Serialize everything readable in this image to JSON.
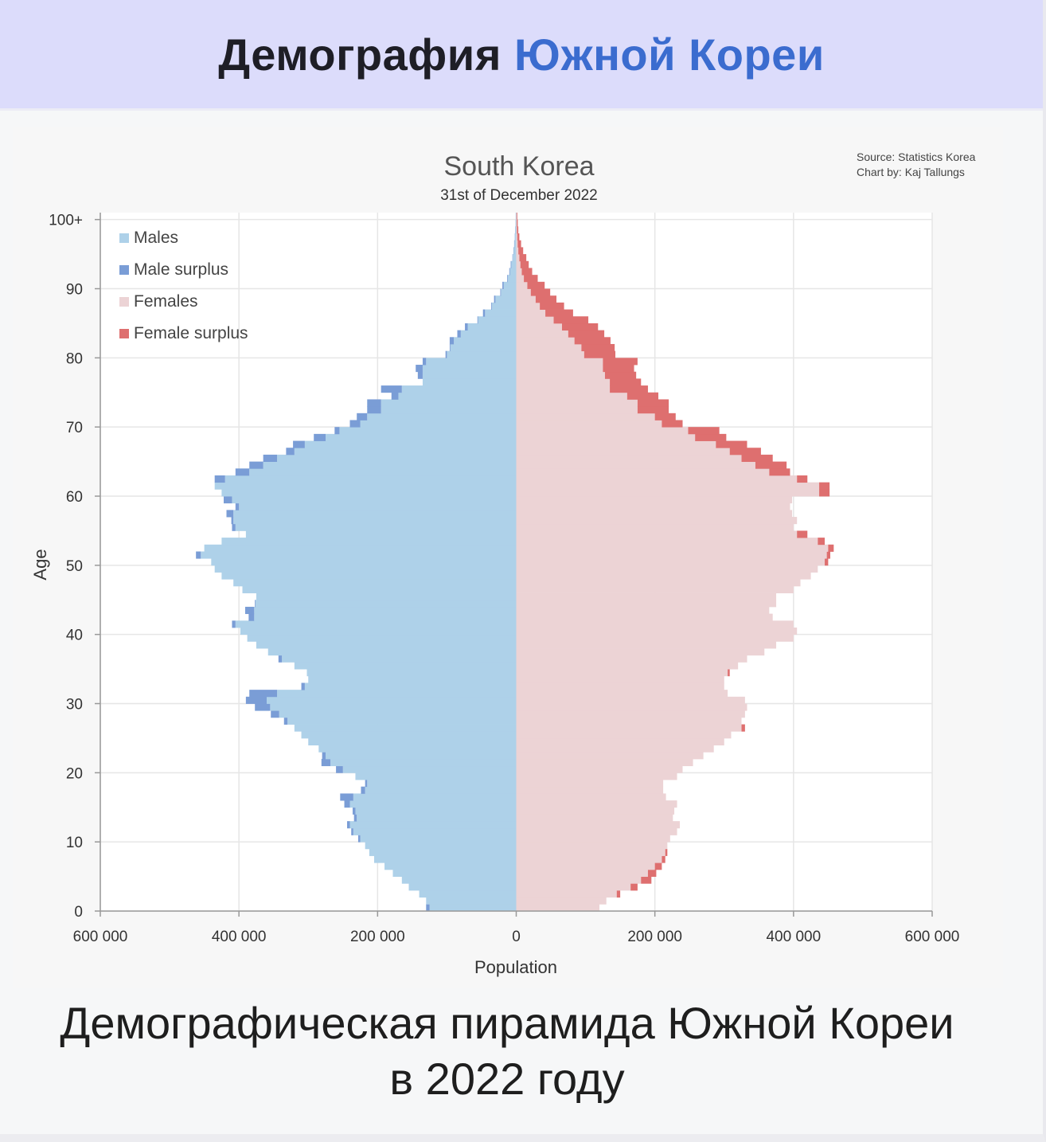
{
  "header": {
    "title_part1": "Демография",
    "title_part2": "Южной Кореи"
  },
  "caption": {
    "line1": "Демографическая пирамида Южной Кореи",
    "line2": "в 2022 году"
  },
  "colors": {
    "header_bg": "#dcdcfb",
    "title_accent": "#3b6ccf",
    "males": "#aed1e9",
    "male_surplus": "#7a9dd6",
    "females": "#ecd3d5",
    "female_surplus": "#de6f6f"
  },
  "chart_data": {
    "type": "bar",
    "orientation": "horizontal-pyramid",
    "title": "South Korea",
    "subtitle": "31st of December 2022",
    "source_line1": "Source: Statistics Korea",
    "source_line2": "Chart by: Kaj Tallungs",
    "xlabel": "Population",
    "ylabel": "Age",
    "xlim": [
      -600000,
      600000
    ],
    "ylim": [
      0,
      101
    ],
    "grid": true,
    "legend_position": "top-left",
    "x_ticks": [
      "600 000",
      "400 000",
      "200 000",
      "0",
      "200 000",
      "400 000",
      "600 000"
    ],
    "y_ticks": [
      "0",
      "10",
      "20",
      "30",
      "40",
      "50",
      "60",
      "70",
      "80",
      "90",
      "100+"
    ],
    "legend": [
      "Males",
      "Male surplus",
      "Females",
      "Female surplus"
    ],
    "ages": [
      0,
      1,
      2,
      3,
      4,
      5,
      6,
      7,
      8,
      9,
      10,
      11,
      12,
      13,
      14,
      15,
      16,
      17,
      18,
      19,
      20,
      21,
      22,
      23,
      24,
      25,
      26,
      27,
      28,
      29,
      30,
      31,
      32,
      33,
      34,
      35,
      36,
      37,
      38,
      39,
      40,
      41,
      42,
      43,
      44,
      45,
      46,
      47,
      48,
      49,
      50,
      51,
      52,
      53,
      54,
      55,
      56,
      57,
      58,
      59,
      60,
      61,
      62,
      63,
      64,
      65,
      66,
      67,
      68,
      69,
      70,
      71,
      72,
      73,
      74,
      75,
      76,
      77,
      78,
      79,
      80,
      81,
      82,
      83,
      84,
      85,
      86,
      87,
      88,
      89,
      90,
      91,
      92,
      93,
      94,
      95,
      96,
      97,
      98,
      99,
      100
    ],
    "series": [
      {
        "name": "Males",
        "values": [
          125000,
          130000,
          140000,
          155000,
          165000,
          178000,
          190000,
          205000,
          212000,
          218000,
          225000,
          235000,
          240000,
          230000,
          232000,
          240000,
          235000,
          218000,
          215000,
          232000,
          250000,
          268000,
          275000,
          285000,
          300000,
          310000,
          320000,
          330000,
          342000,
          355000,
          360000,
          345000,
          305000,
          300000,
          302000,
          320000,
          338000,
          358000,
          375000,
          388000,
          398000,
          405000,
          378000,
          378000,
          376000,
          375000,
          395000,
          408000,
          425000,
          435000,
          440000,
          455000,
          450000,
          425000,
          390000,
          405000,
          408000,
          408000,
          400000,
          410000,
          425000,
          435000,
          420000,
          385000,
          365000,
          345000,
          320000,
          305000,
          275000,
          255000,
          225000,
          215000,
          195000,
          195000,
          170000,
          165000,
          135000,
          135000,
          135000,
          130000,
          100000,
          95000,
          90000,
          80000,
          70000,
          55000,
          45000,
          35000,
          30000,
          22000,
          18000,
          12000,
          9000,
          7000,
          5000,
          3500,
          2500,
          1800,
          1300,
          900,
          600
        ]
      },
      {
        "name": "Females",
        "values": [
          120000,
          130000,
          145000,
          165000,
          180000,
          190000,
          200000,
          210000,
          215000,
          218000,
          222000,
          232000,
          236000,
          226000,
          228000,
          232000,
          216000,
          212000,
          212000,
          232000,
          240000,
          255000,
          270000,
          285000,
          300000,
          310000,
          325000,
          325000,
          330000,
          333000,
          330000,
          305000,
          300000,
          300000,
          305000,
          320000,
          333000,
          358000,
          375000,
          400000,
          405000,
          400000,
          370000,
          365000,
          375000,
          375000,
          400000,
          410000,
          425000,
          435000,
          445000,
          448000,
          450000,
          435000,
          405000,
          400000,
          405000,
          398000,
          395000,
          398000,
          437000,
          437000,
          405000,
          365000,
          345000,
          325000,
          308000,
          288000,
          258000,
          248000,
          210000,
          200000,
          175000,
          175000,
          160000,
          135000,
          135000,
          128000,
          125000,
          125000,
          98000,
          94000,
          84000,
          75000,
          66000,
          54000,
          42000,
          34000,
          28000,
          21000,
          16000,
          11000,
          8000,
          6000,
          4500,
          3000,
          2000,
          1500,
          1000,
          700,
          500
        ]
      },
      {
        "name": "Male surplus",
        "values": [
          5000,
          0,
          0,
          0,
          0,
          0,
          0,
          0,
          0,
          0,
          3000,
          3000,
          4000,
          4000,
          4000,
          8000,
          19000,
          6000,
          3000,
          0,
          10000,
          13000,
          5000,
          0,
          0,
          0,
          0,
          5000,
          12000,
          22000,
          30000,
          40000,
          5000,
          0,
          0,
          0,
          5000,
          0,
          0,
          0,
          0,
          5000,
          8000,
          13000,
          1000,
          0,
          0,
          0,
          0,
          0,
          0,
          7000,
          0,
          0,
          0,
          5000,
          3000,
          10000,
          5000,
          12000,
          0,
          0,
          15000,
          20000,
          20000,
          20000,
          12000,
          17000,
          17000,
          7000,
          15000,
          15000,
          20000,
          20000,
          10000,
          30000,
          0,
          7000,
          10000,
          5000,
          2000,
          1000,
          6000,
          5000,
          4000,
          1000,
          3000,
          1000,
          2000,
          1000,
          2000,
          1000,
          1000,
          1000,
          500,
          500,
          500,
          300,
          300,
          200,
          100
        ]
      },
      {
        "name": "Female surplus",
        "values": [
          0,
          0,
          5000,
          10000,
          15000,
          12000,
          10000,
          5000,
          3000,
          0,
          0,
          0,
          0,
          0,
          0,
          0,
          0,
          0,
          0,
          0,
          0,
          0,
          0,
          0,
          0,
          0,
          5000,
          0,
          0,
          0,
          0,
          0,
          0,
          0,
          3000,
          0,
          0,
          0,
          0,
          0,
          0,
          0,
          0,
          0,
          0,
          0,
          0,
          0,
          0,
          0,
          5000,
          5000,
          8000,
          10000,
          15000,
          0,
          0,
          0,
          0,
          0,
          15000,
          15000,
          15000,
          30000,
          45000,
          45000,
          45000,
          45000,
          45000,
          45000,
          30000,
          30000,
          45000,
          45000,
          45000,
          55000,
          45000,
          45000,
          45000,
          50000,
          45000,
          48000,
          52000,
          52000,
          52000,
          50000,
          40000,
          35000,
          30000,
          28000,
          25000,
          20000,
          15000,
          12000,
          10000,
          7000,
          5000,
          3000,
          2000,
          1500,
          1000
        ]
      }
    ]
  }
}
